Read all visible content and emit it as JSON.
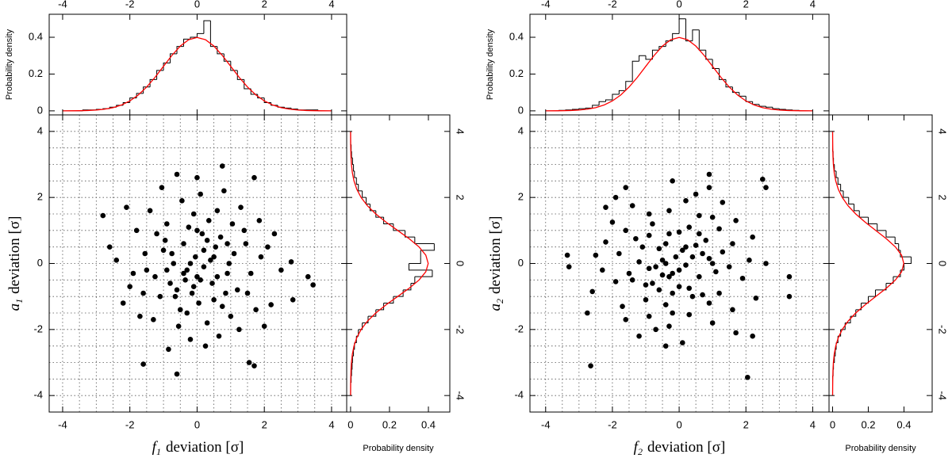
{
  "chart_data": [
    {
      "type": "scatter",
      "color": "#000000",
      "x": [
        -1.6,
        -0.6,
        1.55,
        1.7,
        3.45,
        3.3,
        2.8,
        -2.8,
        -2.6,
        0.75,
        -0.6,
        1.7,
        2.2,
        2.85,
        -0.3,
        0.2,
        -0.8,
        1.1,
        -1.2,
        0.5,
        0.0,
        -0.4,
        0.9,
        -1.5,
        1.4,
        -0.1,
        0.3,
        -0.9,
        0.7,
        -2.0,
        1.9,
        -0.5,
        0.1,
        -1.1,
        1.2,
        0.6,
        -0.2,
        -1.8,
        2.3,
        0.4,
        -0.7,
        1.0,
        -1.3,
        0.8,
        -0.15,
        0.25,
        -2.2,
        1.6,
        -0.45,
        0.55,
        -1.0,
        1.3,
        0.05,
        -0.35,
        2.0,
        -1.7,
        0.95,
        -0.85,
        0.15,
        -2.4,
        1.75,
        -0.05,
        0.45,
        -1.4,
        2.5,
        -0.65,
        0.65,
        -0.25,
        1.05,
        -1.9,
        0.35,
        -0.55,
        1.45,
        -1.05,
        0.85,
        -0.95,
        0.2,
        2.1,
        -1.55,
        0.0,
        -0.3,
        0.75,
        -0.75,
        1.25,
        -1.25,
        0.5,
        -2.1,
        1.85,
        -0.1,
        0.3,
        -0.4,
        0.1,
        -0.2,
        0.6,
        -0.6,
        1.5,
        -1.6,
        0.9,
        -0.9,
        0.0
      ],
      "values": [
        -3.05,
        -3.35,
        -3.0,
        -3.1,
        -0.65,
        -0.4,
        0.05,
        1.45,
        0.5,
        2.95,
        2.7,
        2.6,
        -1.25,
        -1.1,
        -0.2,
        0.4,
        -0.6,
        0.3,
        0.9,
        -1.1,
        -0.4,
        0.6,
        -0.3,
        -0.2,
        1.0,
        1.5,
        -1.8,
        1.2,
        0.8,
        -0.7,
        0.2,
        -1.4,
        2.1,
        -1.0,
        -0.8,
        1.6,
        -2.3,
        1.0,
        0.9,
        0.1,
        0.0,
        -1.6,
        -1.7,
        2.2,
        -0.9,
        -2.5,
        -1.2,
        -0.3,
        1.9,
        0.5,
        0.4,
        1.7,
        -1.2,
        -0.5,
        -1.9,
        -1.6,
        0.0,
        -2.6,
        0.9,
        0.1,
        -1.4,
        0.2,
        -0.6,
        1.6,
        -0.2,
        -1.0,
        -2.2,
        1.1,
        1.2,
        -0.3,
        1.3,
        -1.9,
        0.6,
        2.3,
        -0.9,
        0.7,
        -0.1,
        0.5,
        0.3,
        1.0,
        -1.5,
        -1.3,
        0.3,
        -2.0,
        -0.4,
        0.2,
        1.7,
        1.3,
        -0.7,
        0.7,
        -0.3,
        -0.5,
        0.0,
        -0.4,
        -0.8,
        -0.9,
        -0.9,
        0.6,
        -0.2,
        2.6
      ],
      "xlim": [
        -4.4,
        4.45
      ],
      "ylim": [
        -4.5,
        4.5
      ],
      "xticks": [
        -4,
        -2,
        0,
        2,
        4
      ],
      "yticks": [
        -4,
        -2,
        0,
        2,
        4
      ],
      "grid": true,
      "grid_ticks": [
        -4,
        -3.5,
        -3,
        -2.5,
        -2,
        -1.5,
        -1,
        -0.5,
        0,
        0.5,
        1,
        1.5,
        2,
        2.5,
        3,
        3.5,
        4
      ],
      "xlabel_symbol": "f",
      "xlabel_subscript": "1",
      "xlabel_text": "deviation [σ]",
      "ylabel_symbol": "a",
      "ylabel_subscript": "1",
      "ylabel_text": "deviation [σ]"
    },
    {
      "type": "histogram",
      "orientation": "vertical",
      "color": "#000000",
      "bins": [
        -4,
        -3.8,
        -3.6,
        -3.4,
        -3.2,
        -3,
        -2.8,
        -2.6,
        -2.4,
        -2.2,
        -2,
        -1.8,
        -1.6,
        -1.4,
        -1.2,
        -1,
        -0.8,
        -0.6,
        -0.4,
        -0.2,
        0,
        0.2,
        0.4,
        0.6,
        0.8,
        1,
        1.2,
        1.4,
        1.6,
        1.8,
        2,
        2.2,
        2.4,
        2.6,
        2.8,
        3,
        3.2,
        3.4,
        3.6,
        3.8,
        4
      ],
      "values": [
        0,
        0,
        0,
        0.005,
        0.005,
        0.008,
        0.012,
        0.02,
        0.03,
        0.045,
        0.07,
        0.095,
        0.13,
        0.17,
        0.22,
        0.26,
        0.31,
        0.35,
        0.39,
        0.4,
        0.42,
        0.49,
        0.35,
        0.31,
        0.27,
        0.22,
        0.17,
        0.12,
        0.09,
        0.07,
        0.045,
        0.03,
        0.02,
        0.015,
        0.01,
        0.005,
        0.005,
        0.005,
        0,
        0
      ],
      "curve": {
        "color": "#ff0000",
        "x": [
          -4,
          -3.75,
          -3.5,
          -3.25,
          -3,
          -2.75,
          -2.5,
          -2.25,
          -2,
          -1.75,
          -1.5,
          -1.25,
          -1,
          -0.75,
          -0.5,
          -0.25,
          0,
          0.25,
          0.5,
          0.75,
          1,
          1.25,
          1.5,
          1.75,
          2,
          2.25,
          2.5,
          2.75,
          3,
          3.25,
          3.5,
          3.75,
          4
        ],
        "values": [
          0.0001,
          0.0004,
          0.0009,
          0.002,
          0.0044,
          0.0091,
          0.0175,
          0.0317,
          0.054,
          0.0863,
          0.1295,
          0.1826,
          0.242,
          0.3011,
          0.3521,
          0.3867,
          0.3989,
          0.3867,
          0.3521,
          0.3011,
          0.242,
          0.1826,
          0.1295,
          0.0863,
          0.054,
          0.0317,
          0.0175,
          0.0091,
          0.0044,
          0.002,
          0.0009,
          0.0004,
          0.0001
        ]
      },
      "xlim": [
        -4.4,
        4.45
      ],
      "ylim": [
        -0.022,
        0.525
      ],
      "xticks": [
        -4,
        -2,
        0,
        2,
        4
      ],
      "yticks": [
        0,
        0.2,
        0.4
      ],
      "ylabel": "Probability density"
    },
    {
      "type": "histogram",
      "orientation": "horizontal",
      "color": "#000000",
      "bins": [
        -4,
        -3.8,
        -3.6,
        -3.4,
        -3.2,
        -3,
        -2.8,
        -2.6,
        -2.4,
        -2.2,
        -2,
        -1.8,
        -1.6,
        -1.4,
        -1.2,
        -1,
        -0.8,
        -0.6,
        -0.4,
        -0.2,
        0,
        0.2,
        0.4,
        0.6,
        0.8,
        1,
        1.2,
        1.4,
        1.6,
        1.8,
        2,
        2.2,
        2.4,
        2.6,
        2.8,
        3,
        3.2,
        3.4,
        3.6,
        3.8,
        4
      ],
      "values": [
        0,
        0,
        0.003,
        0.005,
        0.008,
        0.01,
        0.015,
        0.02,
        0.03,
        0.04,
        0.06,
        0.09,
        0.13,
        0.17,
        0.22,
        0.27,
        0.31,
        0.33,
        0.42,
        0.3,
        0.36,
        0.36,
        0.43,
        0.33,
        0.28,
        0.22,
        0.17,
        0.13,
        0.1,
        0.08,
        0.06,
        0.04,
        0.03,
        0.02,
        0.015,
        0.01,
        0.005,
        0.003,
        0,
        0
      ],
      "curve": {
        "color": "#ff0000",
        "x": [
          -4,
          -3.75,
          -3.5,
          -3.25,
          -3,
          -2.75,
          -2.5,
          -2.25,
          -2,
          -1.75,
          -1.5,
          -1.25,
          -1,
          -0.75,
          -0.5,
          -0.25,
          0,
          0.25,
          0.5,
          0.75,
          1,
          1.25,
          1.5,
          1.75,
          2,
          2.25,
          2.5,
          2.75,
          3,
          3.25,
          3.5,
          3.75,
          4
        ],
        "values": [
          0.0001,
          0.0004,
          0.0009,
          0.002,
          0.0044,
          0.0091,
          0.0175,
          0.0317,
          0.054,
          0.0863,
          0.1295,
          0.1826,
          0.242,
          0.3011,
          0.3521,
          0.3867,
          0.3989,
          0.3867,
          0.3521,
          0.3011,
          0.242,
          0.1826,
          0.1295,
          0.0863,
          0.054,
          0.0317,
          0.0175,
          0.0091,
          0.0044,
          0.002,
          0.0009,
          0.0004,
          0.0001
        ]
      },
      "xlim": [
        -0.02,
        0.51
      ],
      "ylim": [
        -4.5,
        4.5
      ],
      "xticks": [
        0,
        0.2,
        0.4
      ],
      "yticks": [
        -4,
        -2,
        0,
        2,
        4
      ],
      "xlabel": "Probability density"
    },
    {
      "type": "scatter",
      "color": "#000000",
      "x": [
        -0.2,
        0.4,
        -0.6,
        0.3,
        0.9,
        -1.1,
        -0.4,
        0.6,
        -0.3,
        -0.2,
        1.0,
        1.5,
        -1.8,
        1.2,
        0.8,
        -0.7,
        0.2,
        -1.4,
        2.1,
        -1.0,
        -0.8,
        1.6,
        -2.3,
        1.0,
        0.9,
        0.1,
        0.0,
        -1.6,
        -1.7,
        2.2,
        -0.9,
        -2.5,
        -1.2,
        -0.3,
        1.9,
        0.5,
        0.4,
        1.7,
        -1.2,
        -0.5,
        -1.9,
        -1.6,
        0.0,
        -2.6,
        0.9,
        0.1,
        -1.4,
        0.2,
        -0.6,
        1.6,
        -0.2,
        -1.0,
        -2.2,
        1.1,
        1.2,
        -0.3,
        1.3,
        -1.9,
        0.6,
        2.3,
        -0.9,
        0.7,
        -0.1,
        0.5,
        0.3,
        1.0,
        -1.5,
        -1.3,
        0.3,
        -2.0,
        -0.4,
        0.2,
        1.7,
        1.3,
        -0.7,
        0.7,
        -0.3,
        -0.5,
        0.0,
        -0.4,
        -0.8,
        -0.9,
        -0.9,
        0.6,
        -0.2,
        2.6,
        -2.65,
        -3.35,
        -3.3,
        -2.75,
        2.5,
        2.6,
        3.3,
        3.3,
        2.05,
        -1.6,
        -2.2,
        2.2,
        0.9,
        -0.4
      ],
      "values": [
        -0.3,
        0.2,
        -0.8,
        1.1,
        -1.2,
        0.5,
        0.0,
        -0.4,
        0.9,
        -1.5,
        1.4,
        -0.1,
        0.3,
        -0.9,
        0.7,
        -2.0,
        1.9,
        -0.5,
        0.1,
        -1.1,
        1.2,
        0.6,
        -0.2,
        -1.8,
        2.3,
        0.4,
        -0.7,
        1.0,
        -1.3,
        0.8,
        -0.15,
        0.25,
        -2.2,
        1.6,
        -0.45,
        0.55,
        -1.0,
        1.3,
        0.05,
        -0.35,
        2.0,
        -1.7,
        0.95,
        -0.85,
        0.15,
        -2.4,
        1.75,
        -0.05,
        0.45,
        -1.4,
        2.5,
        -0.65,
        0.65,
        -0.25,
        1.05,
        -1.9,
        0.35,
        -0.55,
        1.45,
        -1.05,
        0.85,
        -0.95,
        0.2,
        2.1,
        -1.55,
        0.0,
        -0.3,
        0.75,
        -0.75,
        1.25,
        -1.25,
        0.5,
        -2.1,
        1.85,
        -0.1,
        0.3,
        -0.4,
        0.1,
        -0.2,
        0.6,
        -0.6,
        1.5,
        -1.6,
        0.9,
        -0.9,
        0.0,
        -3.1,
        0.25,
        -0.1,
        -1.5,
        2.55,
        2.3,
        -0.4,
        -1.0,
        -3.45,
        2.3,
        1.7,
        -2.2,
        2.7,
        -2.5
      ],
      "xlim": [
        -4.47,
        4.49
      ],
      "ylim": [
        -4.5,
        4.5
      ],
      "xticks": [
        -4,
        -2,
        0,
        2,
        4
      ],
      "yticks": [
        -4,
        -2,
        0,
        2,
        4
      ],
      "grid": true,
      "grid_ticks": [
        -4,
        -3.5,
        -3,
        -2.5,
        -2,
        -1.5,
        -1,
        -0.5,
        0,
        0.5,
        1,
        1.5,
        2,
        2.5,
        3,
        3.5,
        4
      ],
      "xlabel_symbol": "f",
      "xlabel_subscript": "2",
      "xlabel_text": "deviation [σ]",
      "ylabel_symbol": "a",
      "ylabel_subscript": "2",
      "ylabel_text": "deviation [σ]"
    },
    {
      "type": "histogram",
      "orientation": "vertical",
      "color": "#000000",
      "bins": [
        -4,
        -3.8,
        -3.6,
        -3.4,
        -3.2,
        -3,
        -2.8,
        -2.6,
        -2.4,
        -2.2,
        -2,
        -1.8,
        -1.6,
        -1.4,
        -1.2,
        -1,
        -0.8,
        -0.6,
        -0.4,
        -0.2,
        0,
        0.2,
        0.4,
        0.6,
        0.8,
        1,
        1.2,
        1.4,
        1.6,
        1.8,
        2,
        2.2,
        2.4,
        2.6,
        2.8,
        3,
        3.2,
        3.4,
        3.6,
        3.8,
        4
      ],
      "values": [
        0,
        0,
        0.003,
        0.005,
        0.008,
        0.012,
        0.015,
        0.03,
        0.05,
        0.06,
        0.09,
        0.11,
        0.16,
        0.27,
        0.3,
        0.28,
        0.33,
        0.35,
        0.38,
        0.42,
        0.5,
        0.38,
        0.44,
        0.33,
        0.28,
        0.23,
        0.17,
        0.13,
        0.1,
        0.08,
        0.05,
        0.035,
        0.025,
        0.02,
        0.012,
        0.008,
        0.005,
        0.003,
        0,
        0
      ],
      "curve": {
        "color": "#ff0000",
        "x": [
          -4,
          -3.75,
          -3.5,
          -3.25,
          -3,
          -2.75,
          -2.5,
          -2.25,
          -2,
          -1.75,
          -1.5,
          -1.25,
          -1,
          -0.75,
          -0.5,
          -0.25,
          0,
          0.25,
          0.5,
          0.75,
          1,
          1.25,
          1.5,
          1.75,
          2,
          2.25,
          2.5,
          2.75,
          3,
          3.25,
          3.5,
          3.75,
          4
        ],
        "values": [
          0.0001,
          0.0004,
          0.0009,
          0.002,
          0.0044,
          0.0091,
          0.0175,
          0.0317,
          0.054,
          0.0863,
          0.1295,
          0.1826,
          0.242,
          0.3011,
          0.3521,
          0.3867,
          0.3989,
          0.3867,
          0.3521,
          0.3011,
          0.242,
          0.1826,
          0.1295,
          0.0863,
          0.054,
          0.0317,
          0.0175,
          0.0091,
          0.0044,
          0.002,
          0.0009,
          0.0004,
          0.0001
        ]
      },
      "xlim": [
        -4.47,
        4.49
      ],
      "ylim": [
        -0.022,
        0.525
      ],
      "xticks": [
        -4,
        -2,
        0,
        2,
        4
      ],
      "yticks": [
        0,
        0.2,
        0.4
      ],
      "ylabel": "Probability density"
    },
    {
      "type": "histogram",
      "orientation": "horizontal",
      "color": "#000000",
      "bins": [
        -4,
        -3.8,
        -3.6,
        -3.4,
        -3.2,
        -3,
        -2.8,
        -2.6,
        -2.4,
        -2.2,
        -2,
        -1.8,
        -1.6,
        -1.4,
        -1.2,
        -1,
        -0.8,
        -0.6,
        -0.4,
        -0.2,
        0,
        0.2,
        0.4,
        0.6,
        0.8,
        1,
        1.2,
        1.4,
        1.6,
        1.8,
        2,
        2.2,
        2.4,
        2.6,
        2.8,
        3,
        3.2,
        3.4,
        3.6,
        3.8,
        4
      ],
      "values": [
        0,
        0,
        0,
        0.003,
        0.005,
        0.01,
        0.015,
        0.02,
        0.03,
        0.045,
        0.07,
        0.1,
        0.13,
        0.16,
        0.2,
        0.24,
        0.3,
        0.34,
        0.38,
        0.4,
        0.44,
        0.38,
        0.37,
        0.35,
        0.3,
        0.25,
        0.2,
        0.15,
        0.12,
        0.09,
        0.06,
        0.045,
        0.03,
        0.02,
        0.01,
        0.005,
        0.003,
        0,
        0,
        0
      ],
      "curve": {
        "color": "#ff0000",
        "x": [
          -4,
          -3.75,
          -3.5,
          -3.25,
          -3,
          -2.75,
          -2.5,
          -2.25,
          -2,
          -1.75,
          -1.5,
          -1.25,
          -1,
          -0.75,
          -0.5,
          -0.25,
          0,
          0.25,
          0.5,
          0.75,
          1,
          1.25,
          1.5,
          1.75,
          2,
          2.25,
          2.5,
          2.75,
          3,
          3.25,
          3.5,
          3.75,
          4
        ],
        "values": [
          0.0001,
          0.0004,
          0.0009,
          0.002,
          0.0044,
          0.0091,
          0.0175,
          0.0317,
          0.054,
          0.0863,
          0.1295,
          0.1826,
          0.242,
          0.3011,
          0.3521,
          0.3867,
          0.3989,
          0.3867,
          0.3521,
          0.3011,
          0.242,
          0.1826,
          0.1295,
          0.0863,
          0.054,
          0.0317,
          0.0175,
          0.0091,
          0.0044,
          0.002,
          0.0009,
          0.0004,
          0.0001
        ]
      },
      "xlim": [
        -0.02,
        0.558
      ],
      "ylim": [
        -4.5,
        4.5
      ],
      "xticks": [
        0,
        0.2,
        0.4
      ],
      "yticks": [
        -4,
        -2,
        0,
        2,
        4
      ],
      "xlabel": "Probability density"
    }
  ]
}
